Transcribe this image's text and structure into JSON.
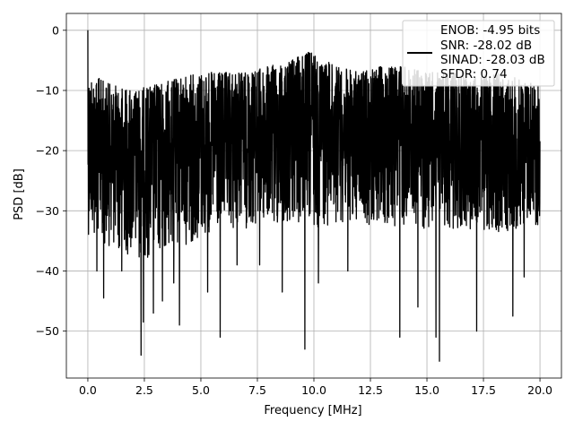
{
  "chart_data": {
    "type": "line",
    "title": "",
    "xlabel": "Frequency [MHz]",
    "ylabel": "PSD [dB]",
    "xlim": [
      -0.95,
      20.95
    ],
    "ylim": [
      -57.8,
      2.8
    ],
    "xticks": [
      0.0,
      2.5,
      5.0,
      7.5,
      10.0,
      12.5,
      15.0,
      17.5,
      20.0
    ],
    "xtick_labels": [
      "0.0",
      "2.5",
      "5.0",
      "7.5",
      "10.0",
      "12.5",
      "15.0",
      "17.5",
      "20.0"
    ],
    "yticks": [
      0,
      -10,
      -20,
      -30,
      -40,
      -50
    ],
    "ytick_labels": [
      "0",
      "−10",
      "−20",
      "−30",
      "−40",
      "−50"
    ],
    "grid": true,
    "legend_position": "top-right",
    "legend_lines": [
      "ENOB: -4.95 bits",
      "SNR: -28.02 dB",
      "SINAD: -28.03 dB",
      "SFDR: 0.74"
    ],
    "series": [
      {
        "color": "#000000",
        "x_range": [
          0.0,
          20.0
        ],
        "peak": {
          "x": 0.0,
          "y": 0.0
        },
        "upper_envelope": {
          "x": [
            0.0,
            1.0,
            2.0,
            3.0,
            4.0,
            5.0,
            6.0,
            7.0,
            8.0,
            9.0,
            9.8,
            10.5,
            11.0,
            12.0,
            13.0,
            14.0,
            15.0,
            16.0,
            17.0,
            18.0,
            19.0,
            20.0
          ],
          "y": [
            -7,
            -9,
            -10,
            -9,
            -8,
            -7,
            -7,
            -7,
            -6,
            -5,
            -3.5,
            -5,
            -6,
            -7,
            -6,
            -6,
            -7,
            -7,
            -8,
            -7,
            -8,
            -9
          ]
        },
        "lower_envelope": {
          "x": [
            0.0,
            1.0,
            2.0,
            3.0,
            4.0,
            5.0,
            6.0,
            7.0,
            8.0,
            9.0,
            10.0,
            11.0,
            12.0,
            13.0,
            14.0,
            15.0,
            16.0,
            17.0,
            18.0,
            19.0,
            20.0
          ],
          "y": [
            -34,
            -36,
            -38,
            -38,
            -36,
            -35,
            -34,
            -33,
            -33,
            -33,
            -33,
            -32,
            -32,
            -33,
            -33,
            -33,
            -33,
            -33,
            -34,
            -33,
            -33
          ]
        },
        "deep_nulls": [
          {
            "x": 0.4,
            "y": -40
          },
          {
            "x": 0.7,
            "y": -44.5
          },
          {
            "x": 1.5,
            "y": -40
          },
          {
            "x": 2.35,
            "y": -54
          },
          {
            "x": 2.45,
            "y": -48.5
          },
          {
            "x": 2.9,
            "y": -47
          },
          {
            "x": 3.3,
            "y": -45
          },
          {
            "x": 3.8,
            "y": -42
          },
          {
            "x": 4.05,
            "y": -49
          },
          {
            "x": 5.3,
            "y": -43.5
          },
          {
            "x": 5.85,
            "y": -51
          },
          {
            "x": 6.6,
            "y": -39
          },
          {
            "x": 7.6,
            "y": -39
          },
          {
            "x": 8.6,
            "y": -43.5
          },
          {
            "x": 9.6,
            "y": -53
          },
          {
            "x": 10.2,
            "y": -42
          },
          {
            "x": 11.5,
            "y": -40
          },
          {
            "x": 13.8,
            "y": -51
          },
          {
            "x": 14.6,
            "y": -46
          },
          {
            "x": 15.4,
            "y": -51
          },
          {
            "x": 15.55,
            "y": -55
          },
          {
            "x": 17.2,
            "y": -50
          },
          {
            "x": 18.8,
            "y": -47.5
          },
          {
            "x": 19.3,
            "y": -41
          }
        ]
      }
    ]
  }
}
